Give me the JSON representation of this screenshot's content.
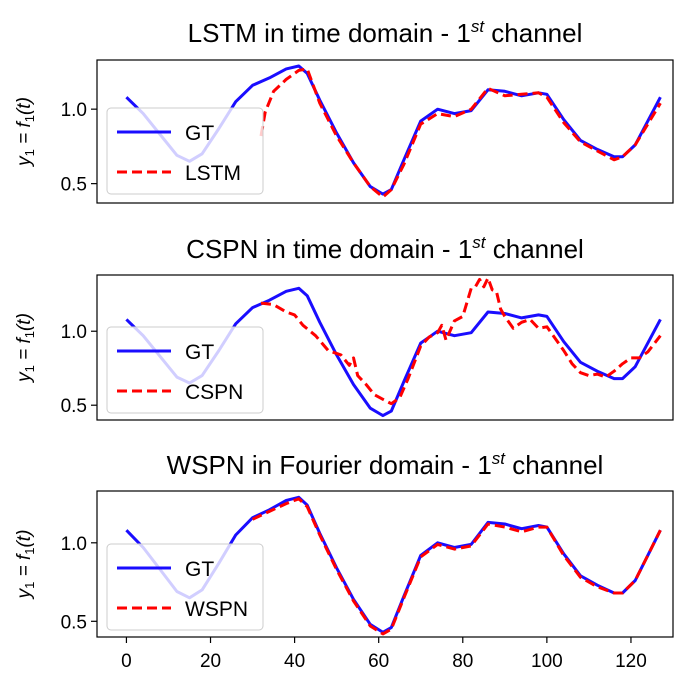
{
  "chart_data": [
    {
      "type": "line",
      "title_main": "LSTM in time domain - 1",
      "title_sup": "st",
      "title_tail": " channel",
      "ylabel_base": "y",
      "ylabel_sub": "1",
      "ylabel_mid": " = f",
      "ylabel_sub2": "1",
      "ylabel_end": "(t)",
      "xlim": [
        -7,
        130
      ],
      "ylim": [
        0.37,
        1.33
      ],
      "yticks": [
        0.5,
        1.0
      ],
      "ytick_labels": [
        "0.5",
        "1.0"
      ],
      "legend_position": "lower-left",
      "series": [
        {
          "name": "GT",
          "color": "#1a0dff",
          "style": "solid",
          "x": [
            0,
            4,
            8,
            12,
            15,
            18,
            22,
            26,
            30,
            34,
            38,
            41,
            43,
            46,
            50,
            54,
            58,
            61,
            63,
            66,
            70,
            74,
            78,
            82,
            86,
            90,
            94,
            98,
            100,
            104,
            108,
            112,
            116,
            118,
            121,
            124,
            127
          ],
          "y": [
            1.08,
            0.97,
            0.83,
            0.69,
            0.65,
            0.7,
            0.87,
            1.05,
            1.16,
            1.21,
            1.27,
            1.29,
            1.24,
            1.06,
            0.84,
            0.64,
            0.48,
            0.43,
            0.46,
            0.66,
            0.92,
            1.0,
            0.97,
            0.99,
            1.13,
            1.12,
            1.09,
            1.11,
            1.1,
            0.93,
            0.79,
            0.73,
            0.68,
            0.68,
            0.76,
            0.92,
            1.08
          ]
        },
        {
          "name": "LSTM",
          "color": "#ff0000",
          "style": "dashed",
          "x": [
            32,
            33,
            35,
            38,
            41,
            43,
            46,
            50,
            54,
            58,
            61,
            63,
            66,
            70,
            74,
            78,
            82,
            86,
            90,
            94,
            98,
            100,
            104,
            108,
            112,
            116,
            118,
            121,
            124,
            127
          ],
          "y": [
            0.82,
            0.98,
            1.12,
            1.2,
            1.26,
            1.27,
            1.04,
            0.82,
            0.64,
            0.48,
            0.41,
            0.46,
            0.63,
            0.9,
            0.97,
            0.95,
            1.0,
            1.14,
            1.09,
            1.1,
            1.11,
            1.08,
            0.91,
            0.78,
            0.72,
            0.66,
            0.68,
            0.76,
            0.9,
            1.04
          ]
        }
      ]
    },
    {
      "type": "line",
      "title_main": "CSPN in time domain - 1",
      "title_sup": "st",
      "title_tail": " channel",
      "ylabel_base": "y",
      "ylabel_sub": "1",
      "ylabel_mid": " = f",
      "ylabel_sub2": "1",
      "ylabel_end": "(t)",
      "xlim": [
        -7,
        130
      ],
      "ylim": [
        0.4,
        1.38
      ],
      "yticks": [
        0.5,
        1.0
      ],
      "ytick_labels": [
        "0.5",
        "1.0"
      ],
      "legend_position": "lower-left",
      "series": [
        {
          "name": "GT",
          "color": "#1a0dff",
          "style": "solid",
          "x": [
            0,
            4,
            8,
            12,
            15,
            18,
            22,
            26,
            30,
            34,
            38,
            41,
            43,
            46,
            50,
            54,
            58,
            61,
            63,
            66,
            70,
            74,
            78,
            82,
            86,
            90,
            94,
            98,
            100,
            104,
            108,
            112,
            116,
            118,
            121,
            124,
            127
          ],
          "y": [
            1.08,
            0.97,
            0.83,
            0.69,
            0.65,
            0.7,
            0.87,
            1.05,
            1.16,
            1.21,
            1.27,
            1.29,
            1.24,
            1.06,
            0.84,
            0.64,
            0.48,
            0.43,
            0.46,
            0.66,
            0.92,
            1.0,
            0.97,
            0.99,
            1.13,
            1.12,
            1.09,
            1.11,
            1.1,
            0.93,
            0.79,
            0.73,
            0.68,
            0.68,
            0.76,
            0.92,
            1.08
          ]
        },
        {
          "name": "CSPN",
          "color": "#ff0000",
          "style": "dashed",
          "x": [
            32,
            35,
            38,
            40,
            42,
            45,
            48,
            51,
            53,
            54,
            55,
            57,
            59,
            61,
            63,
            65,
            67,
            70,
            72,
            74,
            75,
            76,
            78,
            80,
            82,
            83,
            84,
            85,
            86,
            87,
            88,
            89,
            90,
            92,
            94,
            96,
            98,
            100,
            102,
            104,
            106,
            108,
            110,
            112,
            114,
            116,
            118,
            120,
            122,
            124,
            127
          ],
          "y": [
            1.19,
            1.18,
            1.13,
            1.11,
            1.04,
            0.97,
            0.87,
            0.84,
            0.77,
            0.82,
            0.7,
            0.64,
            0.57,
            0.54,
            0.51,
            0.55,
            0.68,
            0.9,
            0.96,
            0.99,
            1.04,
            0.94,
            1.07,
            1.1,
            1.29,
            1.3,
            1.35,
            1.3,
            1.36,
            1.28,
            1.27,
            1.15,
            1.1,
            1.02,
            1.06,
            1.08,
            1.02,
            1.03,
            0.95,
            0.87,
            0.78,
            0.72,
            0.7,
            0.71,
            0.69,
            0.73,
            0.78,
            0.82,
            0.82,
            0.86,
            0.97
          ]
        }
      ]
    },
    {
      "type": "line",
      "title_main": "WSPN in Fourier domain - 1",
      "title_sup": "st",
      "title_tail": " channel",
      "ylabel_base": "y",
      "ylabel_sub": "1",
      "ylabel_mid": " = f",
      "ylabel_sub2": "1",
      "ylabel_end": "(t)",
      "xlim": [
        -7,
        130
      ],
      "ylim": [
        0.4,
        1.33
      ],
      "yticks": [
        0.5,
        1.0
      ],
      "ytick_labels": [
        "0.5",
        "1.0"
      ],
      "xticks": [
        0,
        20,
        40,
        60,
        80,
        100,
        120
      ],
      "xtick_labels": [
        "0",
        "20",
        "40",
        "60",
        "80",
        "100",
        "120"
      ],
      "legend_position": "lower-left",
      "series": [
        {
          "name": "GT",
          "color": "#1a0dff",
          "style": "solid",
          "x": [
            0,
            4,
            8,
            12,
            15,
            18,
            22,
            26,
            30,
            34,
            38,
            41,
            43,
            46,
            50,
            54,
            58,
            61,
            63,
            66,
            70,
            74,
            78,
            82,
            86,
            90,
            94,
            98,
            100,
            104,
            108,
            112,
            116,
            118,
            121,
            124,
            127
          ],
          "y": [
            1.08,
            0.97,
            0.83,
            0.69,
            0.65,
            0.7,
            0.87,
            1.05,
            1.16,
            1.21,
            1.27,
            1.29,
            1.24,
            1.06,
            0.84,
            0.64,
            0.48,
            0.43,
            0.46,
            0.66,
            0.92,
            1.0,
            0.97,
            0.99,
            1.13,
            1.12,
            1.09,
            1.11,
            1.1,
            0.93,
            0.79,
            0.73,
            0.68,
            0.68,
            0.76,
            0.92,
            1.08
          ]
        },
        {
          "name": "WSPN",
          "color": "#ff0000",
          "style": "dashed",
          "x": [
            30,
            34,
            38,
            41,
            43,
            46,
            50,
            54,
            58,
            61,
            63,
            66,
            70,
            74,
            78,
            82,
            86,
            90,
            94,
            98,
            100,
            104,
            108,
            112,
            116,
            118,
            121,
            124,
            127
          ],
          "y": [
            1.15,
            1.2,
            1.25,
            1.28,
            1.23,
            1.05,
            0.83,
            0.63,
            0.47,
            0.42,
            0.45,
            0.65,
            0.91,
            0.99,
            0.96,
            0.98,
            1.12,
            1.1,
            1.07,
            1.1,
            1.1,
            0.92,
            0.78,
            0.72,
            0.68,
            0.68,
            0.76,
            0.92,
            1.08
          ]
        }
      ]
    }
  ]
}
